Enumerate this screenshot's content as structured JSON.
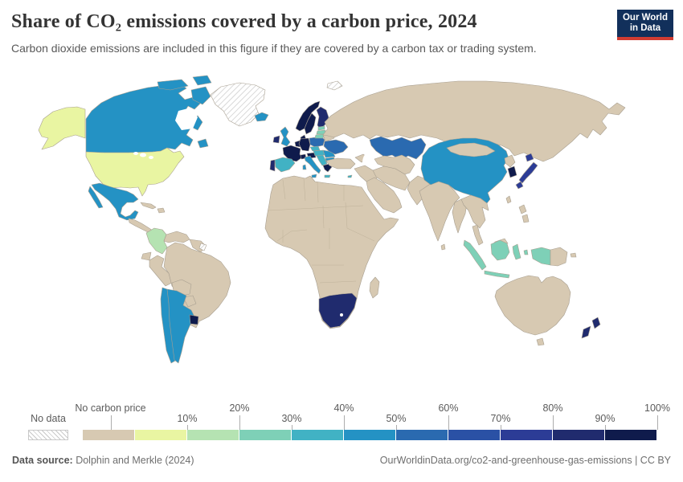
{
  "header": {
    "title": "Share of CO₂ emissions covered by a carbon price, 2024",
    "subtitle": "Carbon dioxide emissions are included in this figure if they are covered by a carbon tax or trading system.",
    "logo": {
      "line1": "Our World",
      "line2": "in Data",
      "bg_color": "#12305b",
      "accent_color": "#d13c32"
    }
  },
  "legend": {
    "no_data_label": "No data",
    "tick_labels": [
      "10%",
      "20%",
      "30%",
      "40%",
      "50%",
      "60%",
      "70%",
      "80%",
      "90%",
      "100%"
    ],
    "bins": [
      {
        "label": "No carbon price",
        "color": "#d7c9b2"
      },
      {
        "label": "0–10%",
        "color": "#e9f5a2"
      },
      {
        "label": "10–20%",
        "color": "#b5e3b2"
      },
      {
        "label": "20–30%",
        "color": "#7ed0b7"
      },
      {
        "label": "30–40%",
        "color": "#41b2c4"
      },
      {
        "label": "40–50%",
        "color": "#2492c4"
      },
      {
        "label": "50–60%",
        "color": "#2a6ab0"
      },
      {
        "label": "60–70%",
        "color": "#2a51a5"
      },
      {
        "label": "70–80%",
        "color": "#2c3c96"
      },
      {
        "label": "80–90%",
        "color": "#202b6e"
      },
      {
        "label": "90–100%",
        "color": "#0f1b4c"
      }
    ]
  },
  "footer": {
    "source_label": "Data source:",
    "source_text": " Dolphin and Merkle (2024)",
    "license_text": "OurWorldinData.org/co2-and-greenhouse-gas-emissions | CC BY"
  },
  "map": {
    "ocean_color": "#ffffff",
    "border_color": "#a89f90",
    "no_data_pattern": "diagonal-hatch",
    "countries": {
      "greenland": "nd",
      "svalbard": "nd",
      "french-guiana": "nd",
      "canada": 5,
      "alaska": 1,
      "usa": 1,
      "mexico": 5,
      "central-america": 0,
      "cuba": 0,
      "hispaniola": 0,
      "colombia": 2,
      "venezuela": 0,
      "guyanas": 0,
      "ecuador": 0,
      "peru": 0,
      "brazil": 0,
      "bolivia": 0,
      "paraguay": 0,
      "chile": 5,
      "argentina": 5,
      "uruguay": 10,
      "iceland": 5,
      "ireland": 9,
      "uk": 5,
      "portugal": 9,
      "spain": 4,
      "france": 10,
      "benelux": 10,
      "germany": 10,
      "denmark": 10,
      "norway": 10,
      "sweden": 10,
      "finland": 9,
      "estonia": 3,
      "latvia": 3,
      "lithuania": 3,
      "poland": 6,
      "czechia": 4,
      "slovakia-hungary": 4,
      "switzerland": 10,
      "austria": 10,
      "italy": 5,
      "western-balkans": 4,
      "romania": 5,
      "bulgaria": 5,
      "greece": 10,
      "crete": 4,
      "cyprus": 4,
      "belarus": 0,
      "ukraine": 6,
      "russia": 0,
      "turkey": 0,
      "caucasus": 0,
      "kazakhstan": 6,
      "central-asia": 0,
      "iran": 0,
      "iraq-levant": 0,
      "arabian-peninsula": 0,
      "afghanistan-pakistan": 0,
      "india": 0,
      "sri-lanka": 0,
      "bangladesh-myanmar": 0,
      "mainland-southeast-asia": 0,
      "malaysia": 0,
      "indonesia": 3,
      "papua-new-guinea": 0,
      "china": 5,
      "mongolia": 0,
      "north-korea": 0,
      "south-korea": 10,
      "japan": 8,
      "taiwan": 0,
      "philippines": 0,
      "australia": 0,
      "new-zealand": 9,
      "africa": 0,
      "south-africa": 9,
      "madagascar": 0
    }
  },
  "chart_data": {
    "type": "heatmap",
    "title": "Share of CO₂ emissions covered by a carbon price, 2024",
    "unit": "share of CO₂ emissions covered by a carbon tax or trading system",
    "legend_position": "bottom",
    "legend_bins": [
      "No carbon price",
      "0–10%",
      "10–20%",
      "20–30%",
      "30–40%",
      "40–50%",
      "50–60%",
      "60–70%",
      "70–80%",
      "80–90%",
      "90–100%",
      "No data"
    ],
    "countries": {
      "Greenland": "No data",
      "Svalbard": "No data",
      "French Guiana": "No data",
      "United States": "0–10%",
      "Colombia": "10–20%",
      "Estonia": "20–30%",
      "Latvia": "20–30%",
      "Lithuania": "20–30%",
      "Indonesia": "20–30%",
      "Spain": "30–40%",
      "Czechia": "30–40%",
      "Slovakia": "30–40%",
      "Hungary": "30–40%",
      "Western Balkans": "30–40%",
      "Cyprus": "30–40%",
      "Canada": "40–50%",
      "Mexico": "40–50%",
      "Chile": "40–50%",
      "Argentina": "40–50%",
      "Iceland": "40–50%",
      "United Kingdom": "40–50%",
      "Italy": "40–50%",
      "Romania": "40–50%",
      "Bulgaria": "40–50%",
      "China": "40–50%",
      "Poland": "50–60%",
      "Ukraine": "50–60%",
      "Kazakhstan": "50–60%",
      "Japan": "70–80%",
      "Ireland": "80–90%",
      "Portugal": "80–90%",
      "Finland": "80–90%",
      "New Zealand": "80–90%",
      "South Africa": "80–90%",
      "Norway": "90–100%",
      "Sweden": "90–100%",
      "Denmark": "90–100%",
      "Germany": "90–100%",
      "France": "90–100%",
      "Benelux": "90–100%",
      "Switzerland": "90–100%",
      "Austria": "90–100%",
      "Greece": "90–100%",
      "South Korea": "90–100%",
      "Uruguay": "90–100%",
      "Russia": "No carbon price",
      "Australia": "No carbon price",
      "India": "No carbon price",
      "Brazil": "No carbon price",
      "Most of Africa": "No carbon price",
      "Madagascar": "No carbon price",
      "Middle East": "No carbon price",
      "Iran": "No carbon price",
      "Turkey": "No carbon price",
      "Central Asia": "No carbon price",
      "Afghanistan & Pakistan": "No carbon price",
      "Mongolia": "No carbon price",
      "North Korea": "No carbon price",
      "Taiwan": "No carbon price",
      "Philippines": "No carbon price",
      "Mainland Southeast Asia": "No carbon price",
      "Malaysia": "No carbon price",
      "Papua New Guinea": "No carbon price",
      "Venezuela": "No carbon price",
      "Peru": "No carbon price",
      "Ecuador": "No carbon price",
      "Bolivia": "No carbon price",
      "Paraguay": "No carbon price",
      "Central America": "No carbon price",
      "Cuba": "No carbon price",
      "Belarus": "No carbon price",
      "Caucasus": "No carbon price"
    }
  }
}
